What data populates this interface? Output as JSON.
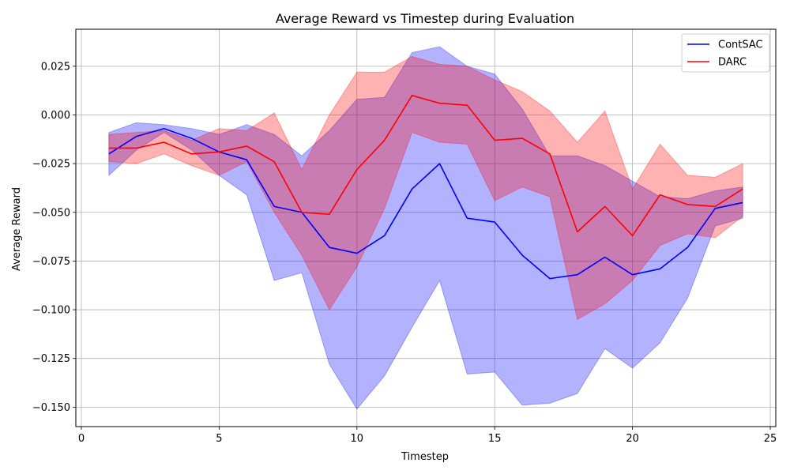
{
  "chart_data": {
    "type": "line",
    "title": "Average Reward vs Timestep during Evaluation",
    "xlabel": "Timestep",
    "ylabel": "Average Reward",
    "xlim": [
      -0.2,
      25.2
    ],
    "ylim": [
      -0.16,
      0.044
    ],
    "xticks": [
      0,
      5,
      10,
      15,
      20,
      25
    ],
    "xtick_labels": [
      "0",
      "5",
      "10",
      "15",
      "20",
      "25"
    ],
    "yticks": [
      -0.15,
      -0.125,
      -0.1,
      -0.075,
      -0.05,
      -0.025,
      0.0,
      0.025
    ],
    "ytick_labels": [
      "−0.150",
      "−0.125",
      "−0.100",
      "−0.075",
      "−0.050",
      "−0.025",
      "0.000",
      "0.025"
    ],
    "grid": true,
    "legend_position": "upper right",
    "x": [
      1,
      2,
      3,
      4,
      5,
      6,
      7,
      8,
      9,
      10,
      11,
      12,
      13,
      14,
      15,
      16,
      17,
      18,
      19,
      20,
      21,
      22,
      23,
      24
    ],
    "series": [
      {
        "name": "ContSAC",
        "color": "#0000ff",
        "fill_color": "#0000ff",
        "values": [
          -0.02,
          -0.011,
          -0.007,
          -0.012,
          -0.019,
          -0.023,
          -0.047,
          -0.05,
          -0.068,
          -0.071,
          -0.062,
          -0.038,
          -0.025,
          -0.053,
          -0.055,
          -0.072,
          -0.084,
          -0.082,
          -0.073,
          -0.082,
          -0.079,
          -0.068,
          -0.048,
          -0.045
        ],
        "upper": [
          -0.009,
          -0.004,
          -0.005,
          -0.007,
          -0.01,
          -0.005,
          -0.01,
          -0.021,
          -0.008,
          0.008,
          0.009,
          0.032,
          0.035,
          0.025,
          0.021,
          0.003,
          -0.021,
          -0.021,
          -0.026,
          -0.034,
          -0.042,
          -0.043,
          -0.039,
          -0.037
        ],
        "lower": [
          -0.031,
          -0.018,
          -0.009,
          -0.018,
          -0.031,
          -0.041,
          -0.085,
          -0.081,
          -0.128,
          -0.151,
          -0.134,
          -0.109,
          -0.085,
          -0.133,
          -0.132,
          -0.149,
          -0.148,
          -0.143,
          -0.12,
          -0.13,
          -0.117,
          -0.094,
          -0.057,
          -0.053
        ]
      },
      {
        "name": "DARC",
        "color": "#ff0000",
        "fill_color": "#ff0000",
        "values": [
          -0.017,
          -0.017,
          -0.014,
          -0.02,
          -0.019,
          -0.016,
          -0.024,
          -0.05,
          -0.051,
          -0.028,
          -0.013,
          0.01,
          0.006,
          0.005,
          -0.013,
          -0.012,
          -0.02,
          -0.06,
          -0.047,
          -0.062,
          -0.041,
          -0.046,
          -0.047,
          -0.038
        ],
        "upper": [
          -0.01,
          -0.009,
          -0.008,
          -0.013,
          -0.007,
          -0.008,
          0.001,
          -0.028,
          0.0,
          0.022,
          0.022,
          0.03,
          0.026,
          0.025,
          0.018,
          0.012,
          0.002,
          -0.014,
          0.002,
          -0.038,
          -0.015,
          -0.031,
          -0.032,
          -0.025
        ],
        "lower": [
          -0.024,
          -0.025,
          -0.02,
          -0.026,
          -0.031,
          -0.024,
          -0.05,
          -0.072,
          -0.1,
          -0.078,
          -0.048,
          -0.009,
          -0.014,
          -0.015,
          -0.044,
          -0.037,
          -0.042,
          -0.105,
          -0.097,
          -0.085,
          -0.067,
          -0.061,
          -0.063,
          -0.052
        ]
      }
    ]
  }
}
